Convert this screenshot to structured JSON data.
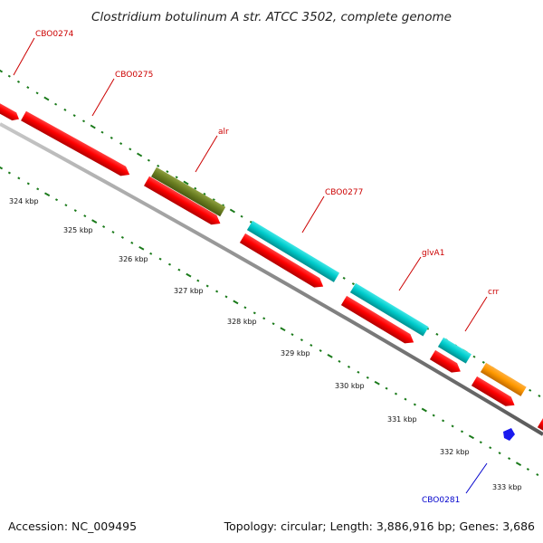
{
  "title": "Clostridium botulinum A str. ATCC 3502, complete genome",
  "footer": {
    "accession": "Accession: NC_009495",
    "summary": "Topology: circular; Length: 3,886,916 bp; Genes: 3,686"
  },
  "colors": {
    "label_red": "#cc0000",
    "label_blue": "#0000cc",
    "tick_green": "#1a7a1a",
    "backbone": "#808080"
  },
  "ticks": [
    {
      "label": "324 kbp"
    },
    {
      "label": "325 kbp"
    },
    {
      "label": "326 kbp"
    },
    {
      "label": "327 kbp"
    },
    {
      "label": "328 kbp"
    },
    {
      "label": "329 kbp"
    },
    {
      "label": "330 kbp"
    },
    {
      "label": "331 kbp"
    },
    {
      "label": "332 kbp"
    },
    {
      "label": "333 kbp"
    }
  ],
  "gene_labels": [
    {
      "name": "CBO0274",
      "color": "#cc0000"
    },
    {
      "name": "CBO0275",
      "color": "#cc0000"
    },
    {
      "name": "alr",
      "color": "#cc0000"
    },
    {
      "name": "CBO0277",
      "color": "#cc0000"
    },
    {
      "name": "glvA1",
      "color": "#cc0000"
    },
    {
      "name": "crr",
      "color": "#cc0000"
    },
    {
      "name": "CBO0281",
      "color": "#0000cc"
    }
  ]
}
